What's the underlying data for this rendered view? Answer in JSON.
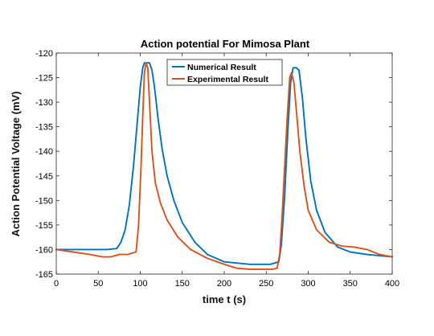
{
  "chart_data": {
    "type": "line",
    "title": "Action potential For Mimosa Plant",
    "xlabel": "time t (s)",
    "ylabel": "Action Potential Voltage (mV)",
    "xlim": [
      0,
      400
    ],
    "ylim": [
      -165,
      -120
    ],
    "xticks": [
      0,
      50,
      100,
      150,
      200,
      250,
      300,
      350,
      400
    ],
    "yticks": [
      -120,
      -125,
      -130,
      -135,
      -140,
      -145,
      -150,
      -155,
      -160,
      -165
    ],
    "grid": false,
    "legend_position": "top-center",
    "series": [
      {
        "name": "Numerical Result",
        "color": "#0072BD",
        "x": [
          0,
          20,
          40,
          60,
          72,
          77,
          82,
          87,
          92,
          96,
          100,
          103,
          105,
          108,
          111,
          114,
          117,
          121,
          126,
          132,
          140,
          150,
          165,
          180,
          200,
          230,
          255,
          265,
          268,
          272,
          276,
          279,
          282,
          286,
          289,
          293,
          297,
          303,
          310,
          320,
          335,
          350,
          370,
          400
        ],
        "y": [
          -160,
          -160,
          -160,
          -160,
          -159.8,
          -158.5,
          -156,
          -151,
          -143,
          -135,
          -127,
          -123,
          -122,
          -122,
          -122,
          -123.5,
          -127,
          -133,
          -139.5,
          -145,
          -150,
          -154.5,
          -158.5,
          -161,
          -162.5,
          -163,
          -163,
          -162.5,
          -159,
          -149,
          -135,
          -126,
          -123,
          -123,
          -123.5,
          -129,
          -137,
          -146,
          -152,
          -156.5,
          -159.5,
          -160.5,
          -161,
          -161.5
        ]
      },
      {
        "name": "Experimental Result",
        "color": "#D95319",
        "x": [
          0,
          20,
          40,
          55,
          65,
          75,
          85,
          95,
          98,
          101,
          103,
          105,
          107,
          109,
          111,
          114,
          118,
          124,
          132,
          145,
          160,
          180,
          200,
          215,
          230,
          245,
          258,
          263,
          266,
          269,
          272,
          275,
          278,
          280,
          283,
          286,
          290,
          295,
          300,
          310,
          325,
          340,
          355,
          370,
          385,
          400
        ],
        "y": [
          -160,
          -160.5,
          -161,
          -161.5,
          -161.5,
          -161,
          -161,
          -160.5,
          -155,
          -143,
          -133,
          -124,
          -122,
          -123,
          -130,
          -140,
          -146.5,
          -150.5,
          -154,
          -157.5,
          -160,
          -161.8,
          -163,
          -163.8,
          -164,
          -164,
          -164,
          -163.8,
          -161,
          -153,
          -143,
          -133,
          -125,
          -124,
          -126,
          -132,
          -140,
          -147,
          -152,
          -156,
          -158.5,
          -159.3,
          -159.5,
          -160,
          -161,
          -161.5
        ]
      }
    ]
  }
}
